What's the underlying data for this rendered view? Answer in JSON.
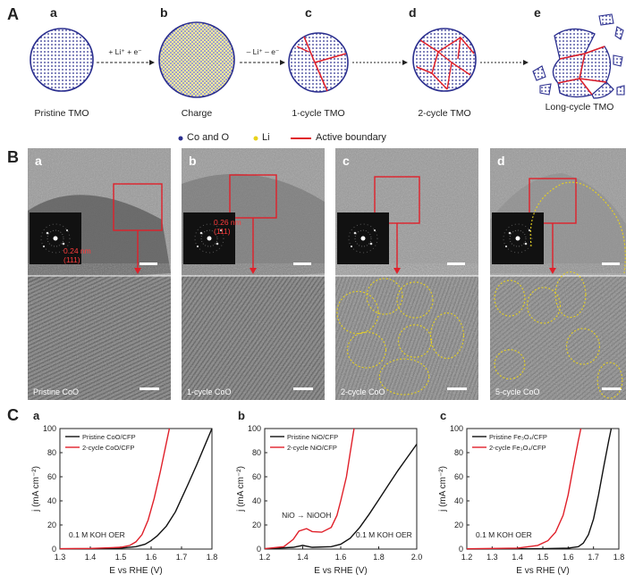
{
  "panel_labels": {
    "A": "A",
    "B": "B",
    "C": "C"
  },
  "schematic": {
    "stages": [
      {
        "letter": "a",
        "caption": "Pristine TMO"
      },
      {
        "letter": "b",
        "caption": "Charge"
      },
      {
        "letter": "c",
        "caption": "1-cycle TMO"
      },
      {
        "letter": "d",
        "caption": "2-cycle TMO"
      },
      {
        "letter": "e",
        "caption": "Long-cycle TMO"
      }
    ],
    "arrow_labels": [
      "+ Li⁺ + e⁻",
      "– Li⁺ – e⁻"
    ],
    "legend": [
      {
        "label": "Co and O",
        "color": "#2b2f8f"
      },
      {
        "label": "Li",
        "color": "#e8d21c"
      },
      {
        "label": "Active boundary",
        "color": "#e0202a"
      }
    ]
  },
  "tem": [
    {
      "letter": "a",
      "label": "Pristine CoO",
      "fft_label": [
        "0.24 nm",
        "(111)"
      ]
    },
    {
      "letter": "b",
      "label": "1-cycle CoO",
      "fft_label": [
        "0.26 nm",
        "(111)"
      ]
    },
    {
      "letter": "c",
      "label": "2-cycle CoO",
      "fft_label": []
    },
    {
      "letter": "d",
      "label": "5-cycle CoO",
      "fft_label": []
    }
  ],
  "chart_data": [
    {
      "type": "line",
      "letter": "a",
      "xlabel": "E vs RHE (V)",
      "ylabel": "j (mA cm⁻²)",
      "xlim": [
        1.3,
        1.8
      ],
      "ylim": [
        0,
        100
      ],
      "xticks": [
        1.3,
        1.4,
        1.5,
        1.6,
        1.7,
        1.8
      ],
      "yticks": [
        0,
        20,
        40,
        60,
        80,
        100
      ],
      "annotation": "0.1 M KOH OER",
      "legend_position": "top-left",
      "series": [
        {
          "name": "Pristine CoO/CFP",
          "color": "#111111",
          "x": [
            1.3,
            1.4,
            1.5,
            1.55,
            1.58,
            1.6,
            1.62,
            1.65,
            1.68,
            1.7,
            1.72,
            1.75,
            1.78,
            1.8
          ],
          "y": [
            0.2,
            0.3,
            0.8,
            2,
            4,
            7,
            11,
            19,
            31,
            42,
            53,
            70,
            88,
            100
          ]
        },
        {
          "name": "2-cycle CoO/CFP",
          "color": "#e0202a",
          "x": [
            1.3,
            1.4,
            1.5,
            1.53,
            1.55,
            1.57,
            1.59,
            1.61,
            1.63,
            1.65,
            1.66
          ],
          "y": [
            0.3,
            0.5,
            1.5,
            3,
            6,
            12,
            24,
            42,
            64,
            88,
            100
          ]
        }
      ]
    },
    {
      "type": "line",
      "letter": "b",
      "xlabel": "E vs RHE (V)",
      "ylabel": "j (mA cm⁻²)",
      "xlim": [
        1.2,
        2.0
      ],
      "ylim": [
        0,
        100
      ],
      "xticks": [
        1.2,
        1.4,
        1.6,
        1.8,
        2.0
      ],
      "yticks": [
        0,
        20,
        40,
        60,
        80,
        100
      ],
      "annotation": "0.1 M KOH OER",
      "peak_annotation": "NiO → NiOOH",
      "legend_position": "top-left",
      "series": [
        {
          "name": "Pristine NiO/CFP",
          "color": "#111111",
          "x": [
            1.2,
            1.35,
            1.4,
            1.45,
            1.55,
            1.6,
            1.65,
            1.7,
            1.75,
            1.8,
            1.85,
            1.9,
            1.95,
            2.0
          ],
          "y": [
            0.2,
            1.5,
            3,
            1.5,
            2,
            4,
            9,
            18,
            29,
            41,
            53,
            65,
            76,
            87
          ]
        },
        {
          "name": "2-cycle NiO/CFP",
          "color": "#e0202a",
          "x": [
            1.2,
            1.3,
            1.35,
            1.38,
            1.42,
            1.45,
            1.5,
            1.55,
            1.58,
            1.6,
            1.63,
            1.65,
            1.67
          ],
          "y": [
            0.3,
            2,
            8,
            15,
            17,
            14.5,
            14,
            18,
            28,
            40,
            60,
            80,
            100
          ]
        }
      ]
    },
    {
      "type": "line",
      "letter": "c",
      "xlabel": "E vs RHE (V)",
      "ylabel": "j (mA cm⁻²)",
      "xlim": [
        1.2,
        1.8
      ],
      "ylim": [
        0,
        100
      ],
      "xticks": [
        1.2,
        1.3,
        1.4,
        1.5,
        1.6,
        1.7,
        1.8
      ],
      "yticks": [
        0,
        20,
        40,
        60,
        80,
        100
      ],
      "annotation": "0.1 M KOH OER",
      "legend_position": "top-left",
      "series": [
        {
          "name": "Pristine Fe₃O₄/CFP",
          "color": "#111111",
          "x": [
            1.2,
            1.5,
            1.6,
            1.64,
            1.66,
            1.68,
            1.7,
            1.72,
            1.74,
            1.76,
            1.77
          ],
          "y": [
            0.1,
            0.3,
            0.8,
            2,
            5,
            12,
            25,
            45,
            68,
            90,
            100
          ]
        },
        {
          "name": "2-cycle Fe₃O₄/CFP",
          "color": "#e0202a",
          "x": [
            1.2,
            1.4,
            1.48,
            1.52,
            1.55,
            1.58,
            1.6,
            1.62,
            1.64,
            1.65
          ],
          "y": [
            0.2,
            0.8,
            3,
            7,
            14,
            28,
            45,
            68,
            90,
            100
          ]
        }
      ]
    }
  ]
}
